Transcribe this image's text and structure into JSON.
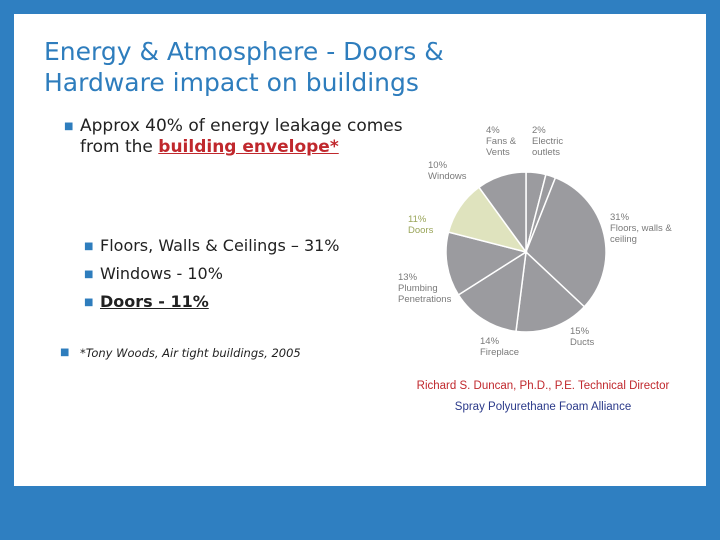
{
  "title": "Energy & Atmosphere - Doors & Hardware impact on buildings",
  "bullet_main": {
    "prefix": "Approx 40% of energy leakage comes from the ",
    "highlight": "building envelope*"
  },
  "sub_bullets": [
    {
      "text": "Floors, Walls & Ceilings – 31%"
    },
    {
      "text": "Windows - 10%"
    },
    {
      "text": "Doors - 11%"
    }
  ],
  "citation": "*Tony Woods, Air tight buildings, 2005",
  "credit": {
    "line1": "Richard S. Duncan, Ph.D., P.E. Technical Director",
    "line2": "Spray Polyurethane Foam Alliance"
  },
  "pie": {
    "segments": [
      {
        "name": "Fans & Vents",
        "percent": 4,
        "label_pct": "4%",
        "label_name": "Fans & Vents",
        "color": "#9b9b9f"
      },
      {
        "name": "Electric outlets",
        "percent": 2,
        "label_pct": "2%",
        "label_name": "Electric outlets",
        "color": "#9b9b9f"
      },
      {
        "name": "Floors, walls & ceiling",
        "percent": 31,
        "label_pct": "31%",
        "label_name": "Floors, walls & ceiling",
        "color": "#9b9b9f"
      },
      {
        "name": "Ducts",
        "percent": 15,
        "label_pct": "15%",
        "label_name": "Ducts",
        "color": "#9b9b9f"
      },
      {
        "name": "Fireplace",
        "percent": 14,
        "label_pct": "14%",
        "label_name": "Fireplace",
        "color": "#9b9b9f"
      },
      {
        "name": "Plumbing Penetrations",
        "percent": 13,
        "label_pct": "13%",
        "label_name": "Plumbing Penetrations",
        "color": "#9b9b9f"
      },
      {
        "name": "Doors",
        "percent": 11,
        "label_pct": "11%",
        "label_name": "Doors",
        "color": "#dfe3be"
      },
      {
        "name": "Windows",
        "percent": 10,
        "label_pct": "10%",
        "label_name": "Windows",
        "color": "#9b9b9f"
      }
    ],
    "start_angle_deg": 0
  }
}
